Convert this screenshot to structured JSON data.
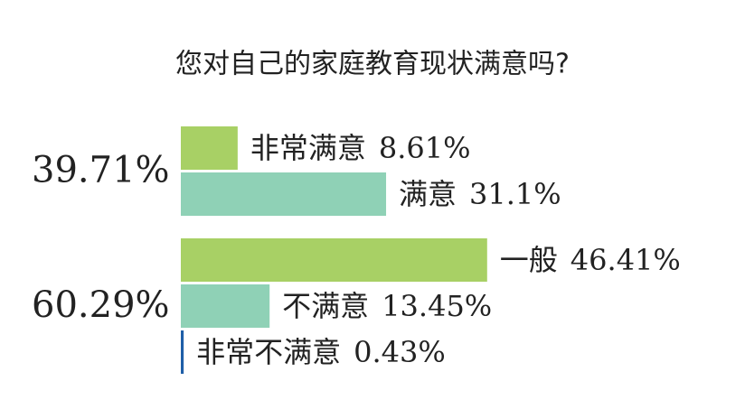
{
  "chart_data": {
    "type": "bar",
    "title": "您对自己的家庭教育现状满意吗?",
    "groups": [
      {
        "total": {
          "value": 39.71,
          "label": "39.71%"
        },
        "categories": [
          "非常满意",
          "满意"
        ],
        "values": [
          8.61,
          31.1
        ],
        "value_labels": [
          "8.61%",
          "31.1%"
        ],
        "colors": [
          "#a8d065",
          "#8fd1b6"
        ]
      },
      {
        "total": {
          "value": 60.29,
          "label": "60.29%"
        },
        "categories": [
          "一般",
          "不满意",
          "非常不满意"
        ],
        "values": [
          46.41,
          13.45,
          0.43
        ],
        "value_labels": [
          "46.41%",
          "13.45%",
          "0.43%"
        ],
        "colors": [
          "#a8d065",
          "#8fd1b6",
          "#1f5fa8"
        ]
      }
    ]
  }
}
